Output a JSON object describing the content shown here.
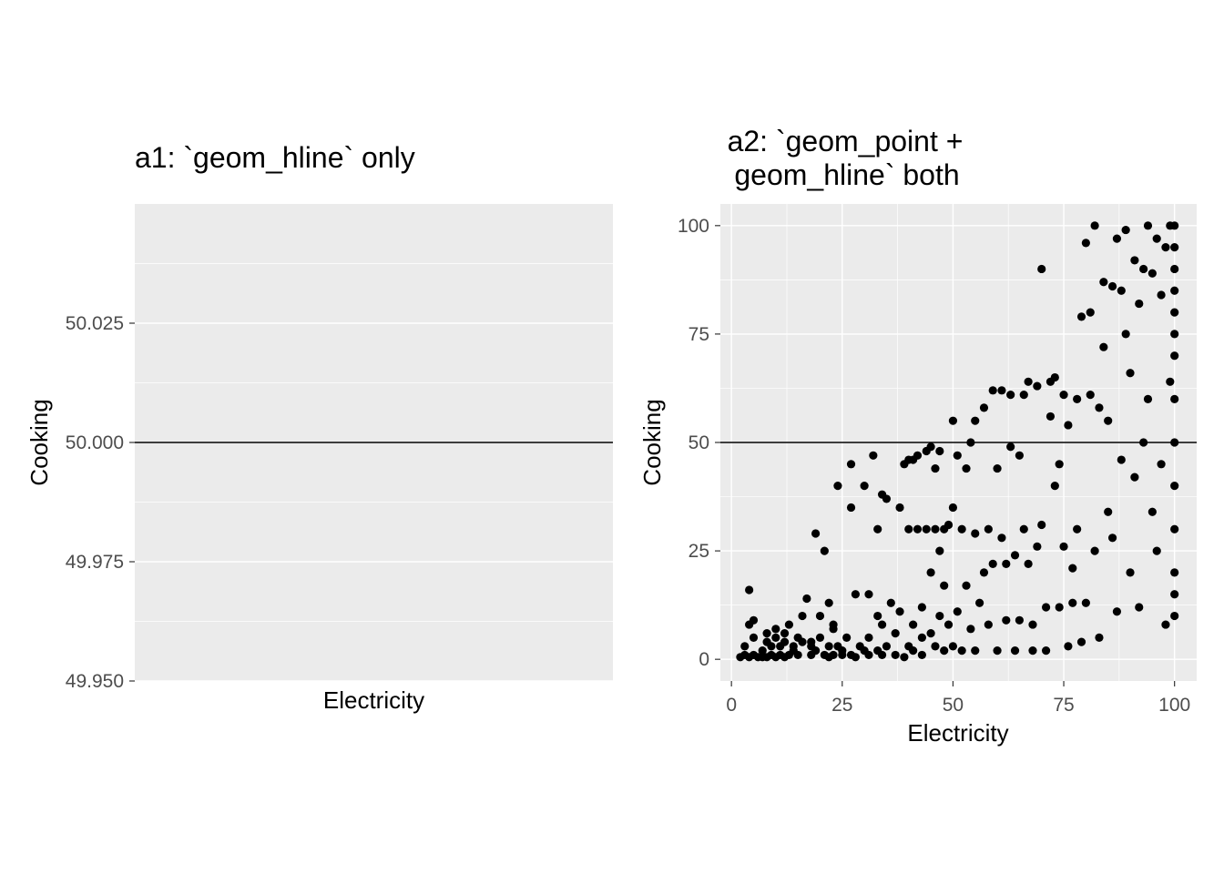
{
  "chart_data": [
    {
      "type": "line",
      "title": "a1: `geom_hline` only",
      "xlabel": "Electricity",
      "ylabel": "Cooking",
      "ylim": [
        49.95,
        50.05
      ],
      "yticks": [
        "49.950",
        "49.975",
        "50.000",
        "50.025"
      ],
      "xticks": [],
      "hline": 50,
      "grid": true
    },
    {
      "type": "scatter",
      "title": "a2: `geom_point +\ngeom_hline` both",
      "xlabel": "Electricity",
      "ylabel": "Cooking",
      "xlim": [
        -2.5,
        105
      ],
      "ylim": [
        -5,
        105
      ],
      "xticks": [
        "0",
        "25",
        "50",
        "75",
        "100"
      ],
      "yticks": [
        "0",
        "25",
        "50",
        "75",
        "100"
      ],
      "hline": 50,
      "grid": true,
      "series": [
        {
          "points": [
            [
              2,
              0.5
            ],
            [
              3,
              1
            ],
            [
              3,
              3
            ],
            [
              4,
              0.5
            ],
            [
              4,
              16
            ],
            [
              4,
              8
            ],
            [
              5,
              1
            ],
            [
              5,
              5
            ],
            [
              5,
              9
            ],
            [
              6,
              0.5
            ],
            [
              7,
              0.5
            ],
            [
              7,
              2
            ],
            [
              8,
              0.5
            ],
            [
              8,
              4
            ],
            [
              8,
              6
            ],
            [
              9,
              1
            ],
            [
              9,
              3
            ],
            [
              10,
              0.5
            ],
            [
              10,
              5
            ],
            [
              10,
              7
            ],
            [
              11,
              1
            ],
            [
              11,
              3
            ],
            [
              12,
              0.5
            ],
            [
              12,
              4
            ],
            [
              12,
              6
            ],
            [
              13,
              1
            ],
            [
              13,
              8
            ],
            [
              14,
              2
            ],
            [
              14,
              3
            ],
            [
              15,
              1
            ],
            [
              15,
              5
            ],
            [
              16,
              4
            ],
            [
              16,
              10
            ],
            [
              17,
              14
            ],
            [
              18,
              1
            ],
            [
              18,
              3
            ],
            [
              18,
              4
            ],
            [
              19,
              2
            ],
            [
              19,
              29
            ],
            [
              20,
              5
            ],
            [
              20,
              10
            ],
            [
              21,
              1
            ],
            [
              21,
              25
            ],
            [
              22,
              0.5
            ],
            [
              22,
              3
            ],
            [
              22,
              13
            ],
            [
              23,
              1
            ],
            [
              23,
              7
            ],
            [
              23,
              8
            ],
            [
              24,
              3
            ],
            [
              24,
              40
            ],
            [
              25,
              2
            ],
            [
              25,
              1
            ],
            [
              26,
              5
            ],
            [
              27,
              1
            ],
            [
              27,
              45
            ],
            [
              27,
              35
            ],
            [
              28,
              0.5
            ],
            [
              28,
              15
            ],
            [
              29,
              3
            ],
            [
              30,
              2
            ],
            [
              30,
              40
            ],
            [
              31,
              1
            ],
            [
              31,
              5
            ],
            [
              31,
              15
            ],
            [
              32,
              47
            ],
            [
              33,
              30
            ],
            [
              33,
              2
            ],
            [
              33,
              10
            ],
            [
              34,
              1
            ],
            [
              34,
              38
            ],
            [
              34,
              8
            ],
            [
              35,
              37
            ],
            [
              35,
              3
            ],
            [
              36,
              13
            ],
            [
              37,
              1
            ],
            [
              37,
              6
            ],
            [
              38,
              35
            ],
            [
              38,
              11
            ],
            [
              39,
              0.5
            ],
            [
              39,
              45
            ],
            [
              40,
              3
            ],
            [
              40,
              46
            ],
            [
              40,
              30
            ],
            [
              41,
              2
            ],
            [
              41,
              8
            ],
            [
              41,
              46
            ],
            [
              42,
              47
            ],
            [
              42,
              30
            ],
            [
              43,
              1
            ],
            [
              43,
              5
            ],
            [
              43,
              12
            ],
            [
              44,
              30
            ],
            [
              44,
              48
            ],
            [
              45,
              6
            ],
            [
              45,
              49
            ],
            [
              45,
              20
            ],
            [
              46,
              44
            ],
            [
              46,
              3
            ],
            [
              46,
              30
            ],
            [
              47,
              10
            ],
            [
              47,
              25
            ],
            [
              47,
              48
            ],
            [
              48,
              2
            ],
            [
              48,
              30
            ],
            [
              48,
              17
            ],
            [
              49,
              31
            ],
            [
              49,
              8
            ],
            [
              50,
              55
            ],
            [
              50,
              35
            ],
            [
              50,
              3
            ],
            [
              51,
              47
            ],
            [
              51,
              11
            ],
            [
              52,
              30
            ],
            [
              52,
              2
            ],
            [
              53,
              44
            ],
            [
              53,
              17
            ],
            [
              54,
              7
            ],
            [
              54,
              50
            ],
            [
              55,
              2
            ],
            [
              55,
              55
            ],
            [
              55,
              29
            ],
            [
              56,
              13
            ],
            [
              57,
              58
            ],
            [
              57,
              20
            ],
            [
              58,
              30
            ],
            [
              58,
              8
            ],
            [
              59,
              62
            ],
            [
              59,
              22
            ],
            [
              60,
              44
            ],
            [
              60,
              2
            ],
            [
              61,
              62
            ],
            [
              61,
              28
            ],
            [
              62,
              22
            ],
            [
              62,
              9
            ],
            [
              63,
              61
            ],
            [
              63,
              49
            ],
            [
              64,
              24
            ],
            [
              64,
              2
            ],
            [
              65,
              47
            ],
            [
              65,
              9
            ],
            [
              66,
              61
            ],
            [
              66,
              30
            ],
            [
              67,
              64
            ],
            [
              67,
              22
            ],
            [
              68,
              2
            ],
            [
              68,
              8
            ],
            [
              69,
              63
            ],
            [
              69,
              26
            ],
            [
              70,
              90
            ],
            [
              70,
              31
            ],
            [
              71,
              12
            ],
            [
              71,
              2
            ],
            [
              72,
              64
            ],
            [
              72,
              56
            ],
            [
              73,
              65
            ],
            [
              73,
              40
            ],
            [
              74,
              45
            ],
            [
              74,
              12
            ],
            [
              75,
              61
            ],
            [
              75,
              26
            ],
            [
              76,
              54
            ],
            [
              76,
              3
            ],
            [
              77,
              21
            ],
            [
              77,
              13
            ],
            [
              78,
              60
            ],
            [
              78,
              30
            ],
            [
              79,
              4
            ],
            [
              79,
              79
            ],
            [
              80,
              96
            ],
            [
              80,
              13
            ],
            [
              81,
              80
            ],
            [
              81,
              61
            ],
            [
              82,
              100
            ],
            [
              82,
              25
            ],
            [
              83,
              58
            ],
            [
              83,
              5
            ],
            [
              84,
              87
            ],
            [
              84,
              72
            ],
            [
              85,
              55
            ],
            [
              85,
              34
            ],
            [
              86,
              86
            ],
            [
              86,
              28
            ],
            [
              87,
              97
            ],
            [
              87,
              11
            ],
            [
              88,
              85
            ],
            [
              88,
              46
            ],
            [
              89,
              99
            ],
            [
              89,
              75
            ],
            [
              90,
              66
            ],
            [
              90,
              20
            ],
            [
              91,
              92
            ],
            [
              91,
              42
            ],
            [
              92,
              82
            ],
            [
              92,
              12
            ],
            [
              93,
              90
            ],
            [
              93,
              50
            ],
            [
              94,
              100
            ],
            [
              94,
              60
            ],
            [
              95,
              89
            ],
            [
              95,
              34
            ],
            [
              96,
              97
            ],
            [
              96,
              25
            ],
            [
              97,
              84
            ],
            [
              97,
              45
            ],
            [
              98,
              95
            ],
            [
              98,
              8
            ],
            [
              99,
              100
            ],
            [
              99,
              64
            ],
            [
              100,
              100
            ],
            [
              100,
              95
            ],
            [
              100,
              90
            ],
            [
              100,
              85
            ],
            [
              100,
              80
            ],
            [
              100,
              75
            ],
            [
              100,
              70
            ],
            [
              100,
              60
            ],
            [
              100,
              50
            ],
            [
              100,
              40
            ],
            [
              100,
              30
            ],
            [
              100,
              20
            ],
            [
              100,
              15
            ],
            [
              100,
              10
            ]
          ]
        }
      ]
    }
  ]
}
